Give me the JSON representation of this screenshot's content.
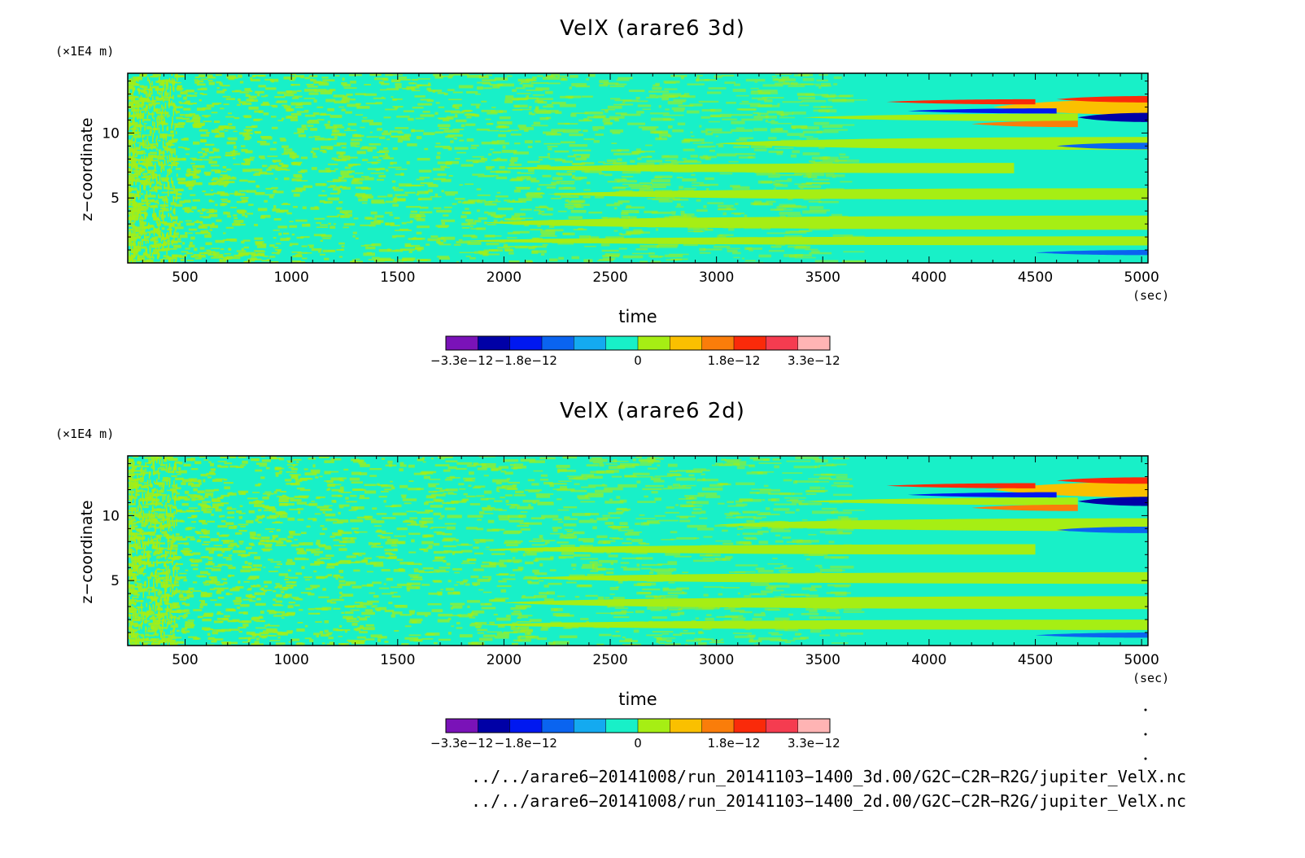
{
  "panels": [
    {
      "title": "VelX (arare6 3d)",
      "y_unit": "(×1E4 m)",
      "y_label": "z−coordinate",
      "x_label": "time",
      "x_unit": "(sec)"
    },
    {
      "title": "VelX (arare6 2d)",
      "y_unit": "(×1E4 m)",
      "y_label": "z−coordinate",
      "x_label": "time",
      "x_unit": "(sec)"
    }
  ],
  "footer": {
    "file_3d": "../../arare6−20141008/run_20141103−1400_3d.00/G2C−C2R−R2G/jupiter_VelX.nc",
    "file_2d": "../../arare6−20141008/run_20141103−1400_2d.00/G2C−C2R−R2G/jupiter_VelX.nc"
  },
  "chart_data": [
    {
      "type": "heatmap",
      "title": "VelX (arare6 3d)",
      "xlabel": "time",
      "x_unit": "(sec)",
      "ylabel": "z−coordinate",
      "y_unit": "(×1E4 m)",
      "xlim": [
        230,
        5030
      ],
      "ylim": [
        0,
        14.6
      ],
      "x_ticks": [
        500,
        1000,
        1500,
        2000,
        2500,
        3000,
        3500,
        4000,
        4500,
        5000
      ],
      "x_tick_labels": [
        "500",
        "1000",
        "1500",
        "2000",
        "2500",
        "3000",
        "3500",
        "4000",
        "4500",
        "5000"
      ],
      "y_ticks": [
        5,
        10
      ],
      "y_tick_labels": [
        "5",
        "10"
      ],
      "colorbar": {
        "colors": [
          "#7a12b8",
          "#0000a6",
          "#0018f0",
          "#0a64f0",
          "#14aaf0",
          "#18f0c8",
          "#a6ee14",
          "#fac000",
          "#fa7d0a",
          "#fa2a0a",
          "#f53c50",
          "#ffb4b4"
        ],
        "tick_labels": [
          "−3.3e−12",
          "−1.8e−12",
          "0",
          "1.8e−12",
          "3.3e−12"
        ],
        "range": [
          -3.3e-12,
          3.3e-12
        ]
      },
      "background": "#18f0c8",
      "bands": [
        {
          "z": 1.7,
          "x0": 1800,
          "x1": 5030,
          "w": 0.7,
          "v": 1
        },
        {
          "z": 3.1,
          "x0": 1900,
          "x1": 5030,
          "w": 1.1,
          "v": 1
        },
        {
          "z": 5.3,
          "x0": 2200,
          "x1": 5030,
          "w": 0.9,
          "v": 1
        },
        {
          "z": 7.3,
          "x0": 2000,
          "x1": 4400,
          "w": 0.8,
          "v": 1
        },
        {
          "z": 9.2,
          "x0": 3000,
          "x1": 5030,
          "w": 1.0,
          "v": 1
        },
        {
          "z": 11.2,
          "x0": 3400,
          "x1": 4700,
          "w": 0.6,
          "v": 1
        },
        {
          "z": 12.0,
          "x0": 4300,
          "x1": 5030,
          "w": 1.2,
          "v": 2
        },
        {
          "z": 12.4,
          "x0": 3800,
          "x1": 4500,
          "w": 0.4,
          "v": 4
        },
        {
          "z": 12.6,
          "x0": 4600,
          "x1": 5030,
          "w": 0.5,
          "v": 4
        },
        {
          "z": 11.2,
          "x0": 4700,
          "x1": 5030,
          "w": 0.7,
          "v": -4
        },
        {
          "z": 11.7,
          "x0": 3900,
          "x1": 4600,
          "w": 0.4,
          "v": -3
        },
        {
          "z": 10.7,
          "x0": 4200,
          "x1": 4700,
          "w": 0.5,
          "v": 3
        },
        {
          "z": 9.0,
          "x0": 4600,
          "x1": 5030,
          "w": 0.5,
          "v": -2
        },
        {
          "z": 0.8,
          "x0": 4500,
          "x1": 5030,
          "w": 0.4,
          "v": -2
        }
      ]
    },
    {
      "type": "heatmap",
      "title": "VelX (arare6 2d)",
      "xlabel": "time",
      "x_unit": "(sec)",
      "ylabel": "z−coordinate",
      "y_unit": "(×1E4 m)",
      "xlim": [
        230,
        5030
      ],
      "ylim": [
        0,
        14.6
      ],
      "x_ticks": [
        500,
        1000,
        1500,
        2000,
        2500,
        3000,
        3500,
        4000,
        4500,
        5000
      ],
      "x_tick_labels": [
        "500",
        "1000",
        "1500",
        "2000",
        "2500",
        "3000",
        "3500",
        "4000",
        "4500",
        "5000"
      ],
      "y_ticks": [
        5,
        10
      ],
      "y_tick_labels": [
        "5",
        "10"
      ],
      "colorbar": {
        "colors": [
          "#7a12b8",
          "#0000a6",
          "#0018f0",
          "#0a64f0",
          "#14aaf0",
          "#18f0c8",
          "#a6ee14",
          "#fac000",
          "#fa7d0a",
          "#fa2a0a",
          "#f53c50",
          "#ffb4b4"
        ],
        "tick_labels": [
          "−3.3e−12",
          "−1.8e−12",
          "0",
          "1.8e−12",
          "3.3e−12"
        ],
        "range": [
          -3.3e-12,
          3.3e-12
        ]
      },
      "background": "#18f0c8",
      "bands": [
        {
          "z": 1.6,
          "x0": 1900,
          "x1": 5030,
          "w": 0.8,
          "v": 1
        },
        {
          "z": 3.3,
          "x0": 2000,
          "x1": 5030,
          "w": 1.0,
          "v": 1
        },
        {
          "z": 5.2,
          "x0": 2100,
          "x1": 5030,
          "w": 0.9,
          "v": 1
        },
        {
          "z": 7.4,
          "x0": 1900,
          "x1": 4500,
          "w": 0.8,
          "v": 1
        },
        {
          "z": 9.3,
          "x0": 3000,
          "x1": 5030,
          "w": 1.0,
          "v": 1
        },
        {
          "z": 11.1,
          "x0": 3400,
          "x1": 4700,
          "w": 0.6,
          "v": 1
        },
        {
          "z": 12.0,
          "x0": 4300,
          "x1": 5030,
          "w": 1.2,
          "v": 2
        },
        {
          "z": 12.3,
          "x0": 3800,
          "x1": 4500,
          "w": 0.4,
          "v": 4
        },
        {
          "z": 12.7,
          "x0": 4600,
          "x1": 5030,
          "w": 0.5,
          "v": 4
        },
        {
          "z": 11.1,
          "x0": 4700,
          "x1": 5030,
          "w": 0.7,
          "v": -4
        },
        {
          "z": 11.6,
          "x0": 3900,
          "x1": 4600,
          "w": 0.4,
          "v": -3
        },
        {
          "z": 10.6,
          "x0": 4200,
          "x1": 4700,
          "w": 0.5,
          "v": 3
        },
        {
          "z": 8.9,
          "x0": 4600,
          "x1": 5030,
          "w": 0.5,
          "v": -2
        },
        {
          "z": 0.8,
          "x0": 4500,
          "x1": 5030,
          "w": 0.4,
          "v": -2
        }
      ]
    }
  ]
}
